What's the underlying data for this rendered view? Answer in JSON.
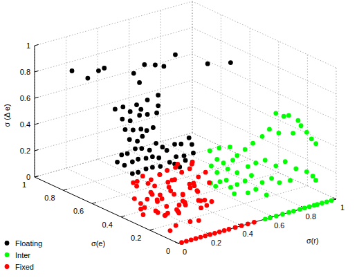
{
  "chart_data": {
    "type": "scatter3d",
    "xlabel": "σ(r)",
    "ylabel": "σ(e)",
    "zlabel": "σ (Δ e)",
    "xlim": [
      0,
      1
    ],
    "ylim": [
      0,
      1
    ],
    "zlim": [
      0,
      1
    ],
    "xticks": [
      0,
      0.2,
      0.4,
      0.6,
      0.8,
      1
    ],
    "yticks": [
      0,
      0.2,
      0.4,
      0.6,
      0.8,
      1
    ],
    "zticks": [
      0,
      0.2,
      0.4,
      0.6,
      0.8,
      1
    ],
    "grid": true,
    "legend": "lower left",
    "marker": "circle",
    "series": [
      {
        "name": "Floating",
        "color": "#000000",
        "x": [
          0.1,
          0.1,
          0.15,
          0.15,
          0.3,
          0.3,
          0.35,
          0.4,
          0.4,
          0.5,
          0.55,
          0.65,
          0.25,
          0.3,
          0.1,
          0.15,
          0.15,
          0.2,
          0.2,
          0.3,
          0.1,
          0.15,
          0.2,
          0.25,
          0.3,
          0.15,
          0.2,
          0.1,
          0.1,
          0.15,
          0.2,
          0.2,
          0.25,
          0.1,
          0.15,
          0.2,
          0.25,
          0.3,
          0.05,
          0.05,
          0.05,
          0.05,
          0.1,
          0.1,
          0.15,
          0.2,
          0.25,
          0.3,
          0.35,
          0.4,
          0.45,
          0.45,
          0.4,
          0.35,
          0.3,
          0.25,
          0.2,
          0.15,
          0.1,
          0.1,
          0.35,
          0.4,
          0.4,
          0.45
        ],
        "y": [
          0.85,
          0.74,
          0.72,
          0.68,
          0.64,
          0.6,
          0.62,
          0.6,
          0.54,
          0.57,
          0.4,
          0.35,
          0.49,
          0.47,
          0.55,
          0.55,
          0.5,
          0.51,
          0.48,
          0.47,
          0.5,
          0.5,
          0.49,
          0.49,
          0.48,
          0.48,
          0.48,
          0.48,
          0.45,
          0.45,
          0.47,
          0.44,
          0.45,
          0.41,
          0.42,
          0.42,
          0.43,
          0.44,
          0.41,
          0.45,
          0.48,
          0.43,
          0.43,
          0.39,
          0.39,
          0.4,
          0.41,
          0.41,
          0.41,
          0.42,
          0.4,
          0.39,
          0.4,
          0.4,
          0.39,
          0.4,
          0.4,
          0.39,
          0.39,
          0.43,
          0.41,
          0.43,
          0.39,
          0.42
        ],
        "z": [
          0.85,
          0.85,
          0.9,
          0.94,
          0.87,
          0.82,
          0.93,
          0.92,
          0.94,
          0.98,
          0.98,
          0.98,
          0.76,
          0.79,
          0.71,
          0.71,
          0.7,
          0.73,
          0.71,
          0.71,
          0.66,
          0.63,
          0.66,
          0.65,
          0.65,
          0.57,
          0.56,
          0.59,
          0.53,
          0.5,
          0.51,
          0.57,
          0.57,
          0.48,
          0.46,
          0.43,
          0.46,
          0.41,
          0.46,
          0.43,
          0.36,
          0.36,
          0.37,
          0.41,
          0.4,
          0.39,
          0.36,
          0.4,
          0.43,
          0.41,
          0.4,
          0.34,
          0.33,
          0.34,
          0.32,
          0.3,
          0.31,
          0.32,
          0.31,
          0.28,
          0.28,
          0.23,
          0.3,
          0.44
        ]
      },
      {
        "name": "Inter",
        "color": "#00ff00",
        "x": [
          0.8,
          0.85,
          0.9,
          0.95,
          0.95,
          0.9,
          0.95,
          0.98,
          0.99,
          0.8,
          0.75,
          0.75,
          0.7,
          0.65,
          0.6,
          0.6,
          0.55,
          0.5,
          0.5,
          0.5,
          0.55,
          0.6,
          0.65,
          0.7,
          0.75,
          0.8,
          0.85,
          0.9,
          0.95,
          0.97,
          0.98,
          0.9,
          0.85,
          0.8,
          0.75,
          0.7,
          0.65,
          0.6,
          0.55,
          0.55,
          0.5,
          0.5,
          0.45,
          0.5,
          0.55,
          0.6,
          0.7,
          0.75,
          0.65,
          0.6,
          0.55,
          0.58,
          0.62,
          0.66,
          0.7,
          0.73,
          0.77,
          0.8,
          0.83,
          0.86,
          0.88,
          0.91,
          0.94,
          0.97
        ],
        "y": [
          0.2,
          0.2,
          0.22,
          0.21,
          0.19,
          0.19,
          0.15,
          0.15,
          0.13,
          0.18,
          0.19,
          0.24,
          0.25,
          0.25,
          0.25,
          0.28,
          0.29,
          0.28,
          0.32,
          0.33,
          0.32,
          0.3,
          0.23,
          0.23,
          0.22,
          0.2,
          0.19,
          0.17,
          0.15,
          0.13,
          0.12,
          0.21,
          0.23,
          0.23,
          0.24,
          0.26,
          0.25,
          0.25,
          0.24,
          0.27,
          0.26,
          0.29,
          0.27,
          0.28,
          0.26,
          0.25,
          0.23,
          0.21,
          0.23,
          0.27,
          0,
          0,
          0,
          0,
          0,
          0,
          0,
          0,
          0,
          0,
          0,
          0,
          0,
          0
        ],
        "z": [
          0.62,
          0.58,
          0.56,
          0.51,
          0.48,
          0.44,
          0.45,
          0.39,
          0.36,
          0.48,
          0.52,
          0.44,
          0.4,
          0.37,
          0.34,
          0.29,
          0.28,
          0.33,
          0.26,
          0.37,
          0.38,
          0.38,
          0.25,
          0.26,
          0.27,
          0.22,
          0.24,
          0.18,
          0.15,
          0.12,
          0.09,
          0.07,
          0.06,
          0.11,
          0.09,
          0.15,
          0.13,
          0.12,
          0.12,
          0.16,
          0.17,
          0.12,
          0.17,
          0.23,
          0.25,
          0.21,
          0.06,
          0.01,
          0.05,
          0.04,
          0,
          0,
          0,
          0,
          0,
          0,
          0,
          0,
          0,
          0,
          0,
          0,
          0,
          0
        ]
      },
      {
        "name": "Fixed",
        "color": "#ff0000",
        "x": [
          0.05,
          0.08,
          0.12,
          0.15,
          0.2,
          0.1,
          0.05,
          0.18,
          0.25,
          0.3,
          0.28,
          0.22,
          0.15,
          0.1,
          0.06,
          0.03,
          0.12,
          0.35,
          0.4,
          0.38,
          0.32,
          0.26,
          0.2,
          0.14,
          0.08,
          0.02,
          0.04,
          0.16,
          0.24,
          0.3,
          0.34,
          0.28,
          0.18,
          0.1,
          0.22,
          0.3,
          0.36,
          0.42,
          0.44,
          0.4,
          0.26,
          0.2,
          0.12,
          0.07,
          0.02,
          0.15,
          0.08,
          0.24,
          0.32,
          0.36,
          0.05,
          0.1,
          0.18,
          0.14,
          0.27,
          0.33,
          0.21,
          0.09,
          0.19,
          0.12,
          0.38,
          0.45,
          0.03,
          0.25,
          0.16,
          0.29,
          0.06,
          0.11,
          0.23,
          0.02,
          0.05,
          0.08,
          0.11,
          0.14,
          0.17,
          0.2,
          0.23,
          0.26,
          0.29,
          0.32,
          0.36,
          0.4,
          0.44,
          0.48
        ],
        "y": [
          0.3,
          0.35,
          0.28,
          0.33,
          0.25,
          0.2,
          0.15,
          0.38,
          0.3,
          0.2,
          0.15,
          0.1,
          0.12,
          0.4,
          0.38,
          0.25,
          0.05,
          0.25,
          0.3,
          0.22,
          0.32,
          0.4,
          0.35,
          0.22,
          0.1,
          0.08,
          0.35,
          0.18,
          0.22,
          0.28,
          0.35,
          0.38,
          0.28,
          0.3,
          0.32,
          0.35,
          0.4,
          0.35,
          0.3,
          0.25,
          0.18,
          0.08,
          0.15,
          0.22,
          0.18,
          0.4,
          0.28,
          0.26,
          0.12,
          0.18,
          0.05,
          0.08,
          0.12,
          0.3,
          0.34,
          0.28,
          0.2,
          0.36,
          0.42,
          0.38,
          0.32,
          0.4,
          0.32,
          0.12,
          0.25,
          0.24,
          0.12,
          0.25,
          0.38,
          0,
          0,
          0,
          0,
          0,
          0,
          0,
          0,
          0,
          0,
          0,
          0,
          0,
          0,
          0
        ],
        "z": [
          0.05,
          0.1,
          0.15,
          0.22,
          0.18,
          0.08,
          0.12,
          0.12,
          0.25,
          0.2,
          0.1,
          0.05,
          0.2,
          0.2,
          0.25,
          0.2,
          0.1,
          0.15,
          0.22,
          0.05,
          0.1,
          0.05,
          0.28,
          0.27,
          0.18,
          0.05,
          0.15,
          0.1,
          0.12,
          0.05,
          0.25,
          0.18,
          0.08,
          0.3,
          0.32,
          0.3,
          0.28,
          0.12,
          0.03,
          0.28,
          0.28,
          0.22,
          0.02,
          0.1,
          0.15,
          0.02,
          0.22,
          0.02,
          0.15,
          0.25,
          0.25,
          0.3,
          0.33,
          0.12,
          0.22,
          0.17,
          0.15,
          0.05,
          0.18,
          0.28,
          0.33,
          0.25,
          0.3,
          0.18,
          0.05,
          0.35,
          0.32,
          0.36,
          0.1,
          0,
          0,
          0,
          0,
          0,
          0,
          0,
          0,
          0,
          0,
          0,
          0,
          0,
          0,
          0
        ]
      }
    ]
  }
}
